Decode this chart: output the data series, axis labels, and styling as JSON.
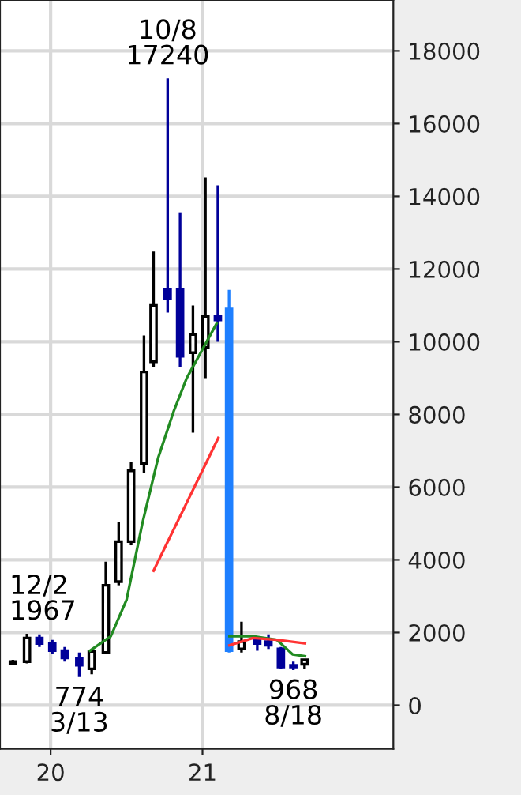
{
  "chart_data": {
    "type": "candlestick",
    "x": [
      "2019-10-02",
      "2019-11-05",
      "2019-12-05",
      "2020-01-05",
      "2020-02-04",
      "2020-03-10",
      "2020-04-09",
      "2020-05-13",
      "2020-06-13",
      "2020-07-13",
      "2020-08-13",
      "2020-09-05",
      "2020-10-09",
      "2020-11-08",
      "2020-12-09",
      "2021-01-08",
      "2021-02-07",
      "2021-03-06",
      "2021-04-05",
      "2021-05-13",
      "2021-06-09",
      "2021-07-09",
      "2021-08-08",
      "2021-09-04"
    ],
    "ohlc": [
      [
        1150,
        1250,
        1150,
        1200
      ],
      [
        1200,
        1967,
        1150,
        1850
      ],
      [
        1850,
        1950,
        1600,
        1700
      ],
      [
        1700,
        1800,
        1400,
        1500
      ],
      [
        1500,
        1600,
        1200,
        1300
      ],
      [
        1300,
        1450,
        774,
        1100
      ],
      [
        1000,
        1500,
        850,
        1480
      ],
      [
        1450,
        3950,
        1400,
        3300
      ],
      [
        3400,
        5050,
        3300,
        4500
      ],
      [
        4500,
        6700,
        4400,
        6450
      ],
      [
        6650,
        10170,
        6400,
        9170
      ],
      [
        9450,
        12480,
        9300,
        11000
      ],
      [
        11450,
        17240,
        10800,
        11200
      ],
      [
        11450,
        13560,
        9300,
        9600
      ],
      [
        9700,
        11000,
        7500,
        10200
      ],
      [
        9850,
        14520,
        9000,
        10700
      ],
      [
        10700,
        14300,
        10000,
        10600
      ],
      [
        10900,
        11430,
        1450,
        1500
      ],
      [
        1550,
        2300,
        1450,
        1750
      ],
      [
        1800,
        1900,
        1500,
        1700
      ],
      [
        1750,
        1950,
        1550,
        1650
      ],
      [
        1550,
        1600,
        1000,
        1050
      ],
      [
        1050,
        1200,
        968,
        1100
      ],
      [
        1130,
        1260,
        1000,
        1250
      ]
    ],
    "colors": [
      "#000000",
      "#000000",
      "#000099",
      "#000099",
      "#000099",
      "#000099",
      "#000000",
      "#000000",
      "#000000",
      "#000000",
      "#000000",
      "#000000",
      "#000099",
      "#000099",
      "#000000",
      "#000000",
      "#000099",
      "#1e7fff",
      "#000000",
      "#000099",
      "#000099",
      "#000099",
      "#000099",
      "#000000"
    ],
    "series": [
      {
        "type": "line",
        "color": "#228b22",
        "x": [
          "2020-04-05",
          "2020-05-25",
          "2020-07-02",
          "2020-08-09",
          "2020-09-16",
          "2020-10-24",
          "2020-11-24",
          "2021-02-04",
          "2021-02-20",
          "2021-03-07",
          "2021-05-03",
          "2021-06-29",
          "2021-08-06",
          "2021-09-05"
        ],
        "values": [
          1500,
          1900,
          2900,
          5000,
          6800,
          8100,
          9000,
          10500,
          null,
          1900,
          1900,
          1800,
          1400,
          1350
        ]
      },
      {
        "type": "line",
        "color": "#ff3333",
        "x": [
          "2020-09-05",
          "2021-02-08",
          "2021-02-20",
          "2021-03-07",
          "2021-05-03",
          "2021-06-29",
          "2021-09-05"
        ],
        "values": [
          3700,
          7350,
          null,
          1650,
          1850,
          1800,
          1700
        ]
      }
    ],
    "xlim": [
      "2019-09-01",
      "2022-04-06"
    ],
    "xticks": [
      {
        "value": "2020-01-01",
        "label": "20"
      },
      {
        "value": "2021-01-01",
        "label": "21"
      }
    ],
    "ylim": [
      -1200,
      19400
    ],
    "yticks": [
      0,
      2000,
      4000,
      6000,
      8000,
      10000,
      12000,
      14000,
      16000,
      18000
    ],
    "grid": true,
    "annotations": [
      {
        "text": "12/2\n1967",
        "x": "2019-11-05",
        "y": 1967
      },
      {
        "text": "774\n3/13",
        "x": "2020-03-10",
        "y": 774
      },
      {
        "text": "10/8\n17240",
        "x": "2020-10-09",
        "y": 17240
      },
      {
        "text": "968\n8/18",
        "x": "2021-08-08",
        "y": 968
      }
    ]
  }
}
